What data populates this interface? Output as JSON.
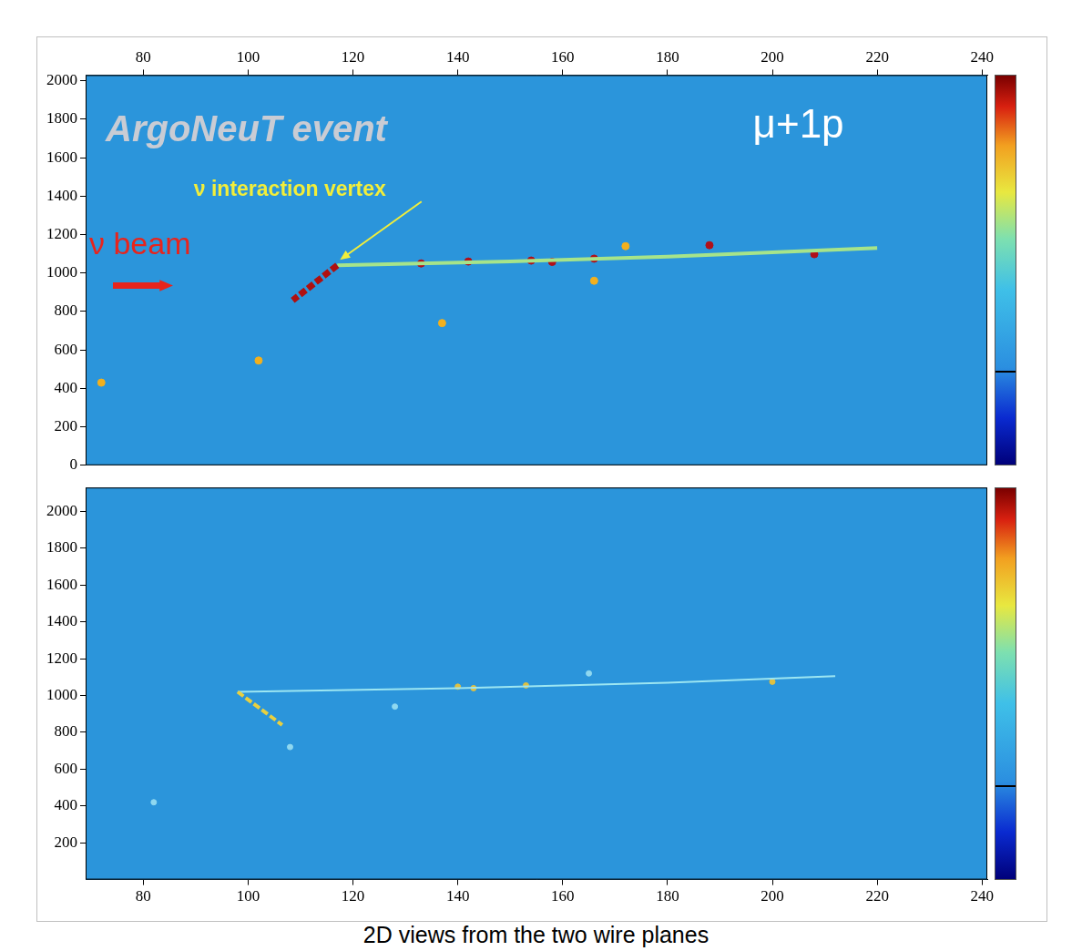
{
  "caption": "2D views from the two wire planes",
  "chart_data": [
    {
      "type": "scatter",
      "annotations": [
        "ArgoNeuT event",
        "ν interaction vertex",
        "ν beam",
        "μ+1p"
      ],
      "xlim": [
        69,
        241
      ],
      "xticks": [
        80,
        100,
        120,
        140,
        160,
        180,
        200,
        220,
        240
      ],
      "ylim": [
        0,
        2030
      ],
      "yticks": [
        0,
        200,
        400,
        600,
        800,
        1000,
        1200,
        1400,
        1600,
        1800,
        2000
      ],
      "grid": false,
      "series": [
        {
          "type": "line",
          "color": "#b01010",
          "line_style": "dashed",
          "x": [
            117,
            108.5
          ],
          "values": [
            1040,
            858
          ]
        },
        {
          "type": "line",
          "color": "#a6e48a",
          "line_style": "solid",
          "x": [
            117,
            150,
            180,
            220
          ],
          "values": [
            1040,
            1060,
            1085,
            1130
          ]
        },
        {
          "type": "scatter",
          "color": "#b0101a",
          "marker": "circle",
          "x": [
            133,
            142,
            154,
            158,
            166,
            188,
            208
          ],
          "values": [
            1050,
            1060,
            1065,
            1058,
            1075,
            1145,
            1098
          ]
        },
        {
          "type": "scatter",
          "color": "#f2b01e",
          "marker": "circle",
          "x": [
            72,
            137,
            166,
            172,
            102
          ],
          "values": [
            430,
            740,
            960,
            1140,
            545
          ]
        }
      ]
    },
    {
      "type": "scatter",
      "xlim": [
        69,
        241
      ],
      "xticks": [
        80,
        100,
        120,
        140,
        160,
        180,
        200,
        220,
        240
      ],
      "ylim": [
        0,
        2130
      ],
      "yticks": [
        200,
        400,
        600,
        800,
        1000,
        1200,
        1400,
        1600,
        1800,
        2000
      ],
      "grid": false,
      "series": [
        {
          "type": "line",
          "color": "#e8d040",
          "line_style": "dashed",
          "x": [
            98,
            106.5
          ],
          "values": [
            1020,
            840
          ]
        },
        {
          "type": "line",
          "color": "#9ce6f2",
          "line_style": "solid",
          "x": [
            98,
            140,
            180,
            212
          ],
          "values": [
            1020,
            1040,
            1070,
            1105
          ]
        },
        {
          "type": "scatter",
          "color": "#e0c040",
          "marker": "circle",
          "x": [
            140,
            143,
            153,
            200
          ],
          "values": [
            1048,
            1040,
            1055,
            1075
          ]
        },
        {
          "type": "scatter",
          "color": "#8fd8f0",
          "marker": "circle",
          "x": [
            82,
            108,
            128,
            165
          ],
          "values": [
            420,
            720,
            940,
            1120
          ]
        }
      ]
    }
  ]
}
